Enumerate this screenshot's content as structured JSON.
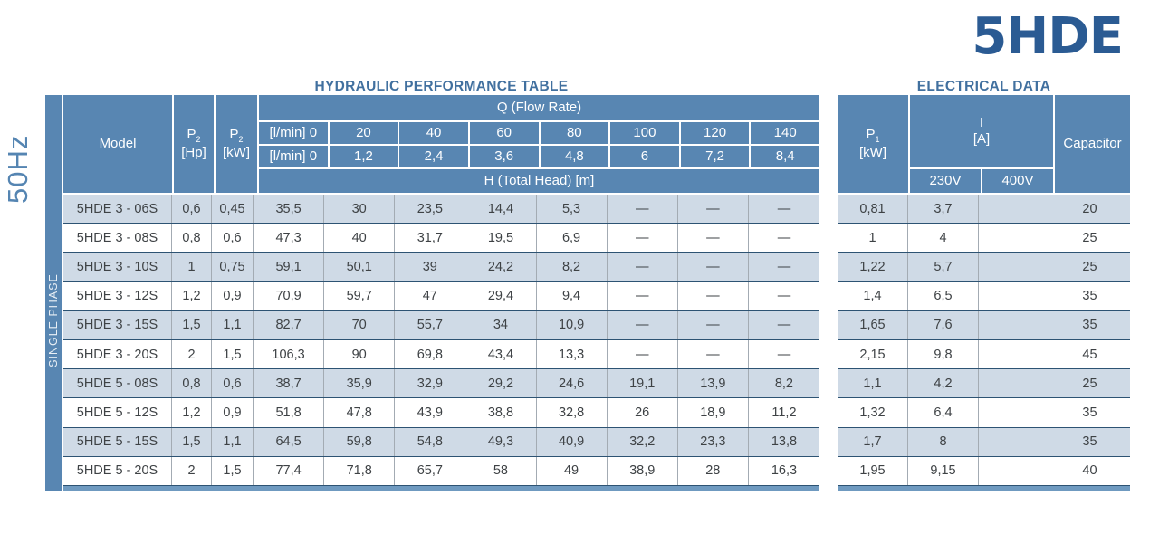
{
  "page": {
    "product_code": "5HDE",
    "frequency_label": "50Hz",
    "phase_label": "SINGLE PHASE"
  },
  "colors": {
    "header_blue": "#5886b2",
    "row_shade": "#cfdae6",
    "logo_blue": "#2b5b93",
    "title_blue": "#41709f",
    "bottom_bar_blue": "#6f9ac0",
    "row_border_navy": "#2d5373"
  },
  "hydraulic": {
    "title": "HYDRAULIC PERFORMANCE TABLE",
    "header": {
      "model": "Model",
      "p2_hp": {
        "letter": "P",
        "sub": "2",
        "unit": "[Hp]"
      },
      "p2_kw": {
        "letter": "P",
        "sub": "2",
        "unit": "[kW]"
      },
      "q_flow": "Q (Flow Rate)",
      "flow_row1": {
        "label": "[l/min] 0",
        "values": [
          "20",
          "40",
          "60",
          "80",
          "100",
          "120",
          "140"
        ]
      },
      "flow_row2": {
        "label": "[l/min] 0",
        "values": [
          "1,2",
          "2,4",
          "3,6",
          "4,8",
          "6",
          "7,2",
          "8,4"
        ]
      },
      "h_total": "H (Total Head) [m]"
    },
    "rows": [
      {
        "model": "5HDE 3 - 06S",
        "p2_hp": "0,6",
        "p2_kw": "0,45",
        "head": [
          "35,5",
          "30",
          "23,5",
          "14,4",
          "5,3",
          "—",
          "—",
          "—"
        ]
      },
      {
        "model": "5HDE 3 - 08S",
        "p2_hp": "0,8",
        "p2_kw": "0,6",
        "head": [
          "47,3",
          "40",
          "31,7",
          "19,5",
          "6,9",
          "—",
          "—",
          "—"
        ]
      },
      {
        "model": "5HDE 3 - 10S",
        "p2_hp": "1",
        "p2_kw": "0,75",
        "head": [
          "59,1",
          "50,1",
          "39",
          "24,2",
          "8,2",
          "—",
          "—",
          "—"
        ]
      },
      {
        "model": "5HDE 3 - 12S",
        "p2_hp": "1,2",
        "p2_kw": "0,9",
        "head": [
          "70,9",
          "59,7",
          "47",
          "29,4",
          "9,4",
          "—",
          "—",
          "—"
        ]
      },
      {
        "model": "5HDE 3 - 15S",
        "p2_hp": "1,5",
        "p2_kw": "1,1",
        "head": [
          "82,7",
          "70",
          "55,7",
          "34",
          "10,9",
          "—",
          "—",
          "—"
        ]
      },
      {
        "model": "5HDE 3 - 20S",
        "p2_hp": "2",
        "p2_kw": "1,5",
        "head": [
          "106,3",
          "90",
          "69,8",
          "43,4",
          "13,3",
          "—",
          "—",
          "—"
        ]
      },
      {
        "model": "5HDE 5 - 08S",
        "p2_hp": "0,8",
        "p2_kw": "0,6",
        "head": [
          "38,7",
          "35,9",
          "32,9",
          "29,2",
          "24,6",
          "19,1",
          "13,9",
          "8,2"
        ]
      },
      {
        "model": "5HDE 5 - 12S",
        "p2_hp": "1,2",
        "p2_kw": "0,9",
        "head": [
          "51,8",
          "47,8",
          "43,9",
          "38,8",
          "32,8",
          "26",
          "18,9",
          "11,2"
        ]
      },
      {
        "model": "5HDE 5 - 15S",
        "p2_hp": "1,5",
        "p2_kw": "1,1",
        "head": [
          "64,5",
          "59,8",
          "54,8",
          "49,3",
          "40,9",
          "32,2",
          "23,3",
          "13,8"
        ]
      },
      {
        "model": "5HDE 5 - 20S",
        "p2_hp": "2",
        "p2_kw": "1,5",
        "head": [
          "77,4",
          "71,8",
          "65,7",
          "58",
          "49",
          "38,9",
          "28",
          "16,3"
        ]
      }
    ]
  },
  "electrical": {
    "title": "ELECTRICAL DATA",
    "header": {
      "p1_kw": {
        "letter": "P",
        "sub": "1",
        "unit": "[kW]"
      },
      "current": {
        "letter": "I",
        "unit": "[A]"
      },
      "v230": "230V",
      "v400": "400V",
      "capacitor": "Capacitor"
    },
    "rows": [
      {
        "p1_kw": "0,81",
        "i_230": "3,7",
        "i_400": "",
        "capacitor": "20"
      },
      {
        "p1_kw": "1",
        "i_230": "4",
        "i_400": "",
        "capacitor": "25"
      },
      {
        "p1_kw": "1,22",
        "i_230": "5,7",
        "i_400": "",
        "capacitor": "25"
      },
      {
        "p1_kw": "1,4",
        "i_230": "6,5",
        "i_400": "",
        "capacitor": "35"
      },
      {
        "p1_kw": "1,65",
        "i_230": "7,6",
        "i_400": "",
        "capacitor": "35"
      },
      {
        "p1_kw": "2,15",
        "i_230": "9,8",
        "i_400": "",
        "capacitor": "45"
      },
      {
        "p1_kw": "1,1",
        "i_230": "4,2",
        "i_400": "",
        "capacitor": "25"
      },
      {
        "p1_kw": "1,32",
        "i_230": "6,4",
        "i_400": "",
        "capacitor": "35"
      },
      {
        "p1_kw": "1,7",
        "i_230": "8",
        "i_400": "",
        "capacitor": "35"
      },
      {
        "p1_kw": "1,95",
        "i_230": "9,15",
        "i_400": "",
        "capacitor": "40"
      }
    ]
  }
}
